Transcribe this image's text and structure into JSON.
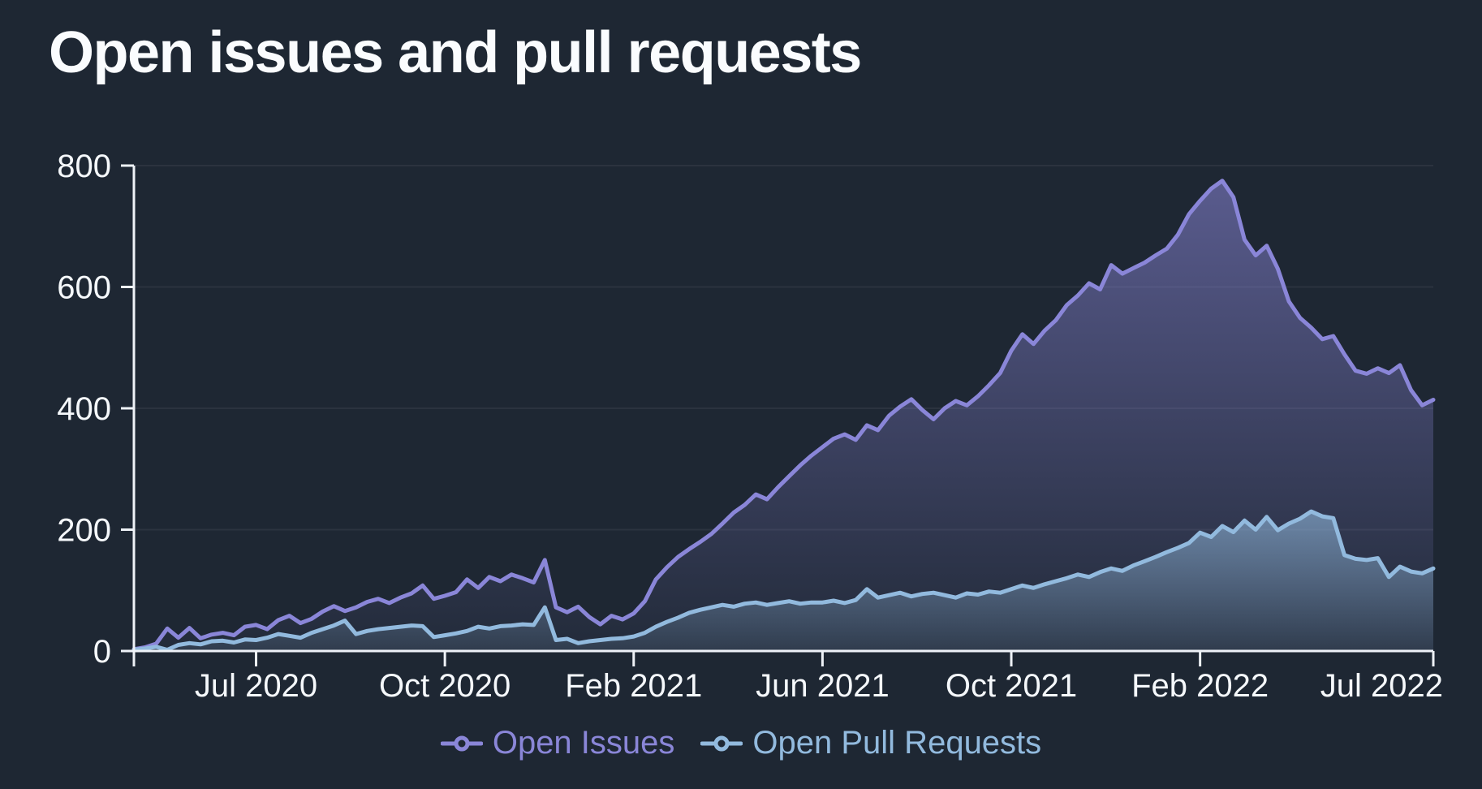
{
  "chart_data": {
    "type": "area",
    "title": "Open issues and pull requests",
    "xlabel": "",
    "ylabel": "",
    "ylim": [
      0,
      800
    ],
    "grid": true,
    "legend_position": "bottom",
    "background_color": "#1e2733",
    "axis_color": "#eef2f7",
    "y_ticks": [
      0,
      200,
      400,
      600,
      800
    ],
    "y_tick_labels": [
      "0",
      "200",
      "400",
      "600",
      "800"
    ],
    "x_tick_labels": [
      "Jul 2020",
      "Oct 2020",
      "Feb 2021",
      "Jun 2021",
      "Oct 2021",
      "Feb 2022",
      "Jul 2022"
    ],
    "x_label_indices": [
      11,
      28,
      45,
      62,
      79,
      96,
      117
    ],
    "x_tick_mark_indices": [
      0,
      11,
      28,
      45,
      62,
      79,
      96,
      117
    ],
    "series": [
      {
        "name": "Open Issues",
        "color": "#8a86d8",
        "marker": "line-circle",
        "values": [
          3,
          6,
          12,
          37,
          22,
          38,
          21,
          27,
          30,
          26,
          40,
          43,
          36,
          51,
          58,
          46,
          53,
          65,
          74,
          66,
          72,
          81,
          86,
          79,
          88,
          95,
          108,
          86,
          91,
          97,
          118,
          104,
          122,
          115,
          126,
          120,
          113,
          150,
          72,
          64,
          73,
          56,
          44,
          58,
          52,
          62,
          82,
          118,
          138,
          155,
          168,
          180,
          193,
          210,
          228,
          241,
          258,
          250,
          270,
          288,
          306,
          322,
          336,
          350,
          357,
          348,
          372,
          364,
          388,
          403,
          415,
          397,
          382,
          400,
          412,
          405,
          420,
          438,
          458,
          495,
          522,
          506,
          528,
          545,
          570,
          586,
          606,
          596,
          636,
          622,
          631,
          640,
          652,
          663,
          686,
          720,
          742,
          762,
          775,
          748,
          678,
          652,
          668,
          630,
          576,
          549,
          533,
          514,
          519,
          489,
          462,
          457,
          466,
          458,
          471,
          430,
          405,
          414
        ]
      },
      {
        "name": "Open Pull Requests",
        "color": "#92bade",
        "marker": "line-circle",
        "values": [
          2,
          4,
          7,
          2,
          10,
          13,
          11,
          16,
          17,
          14,
          19,
          18,
          22,
          28,
          25,
          22,
          30,
          36,
          42,
          50,
          28,
          33,
          36,
          38,
          40,
          42,
          41,
          23,
          26,
          29,
          33,
          40,
          37,
          41,
          42,
          44,
          43,
          72,
          18,
          20,
          13,
          16,
          18,
          20,
          21,
          24,
          30,
          40,
          48,
          55,
          63,
          68,
          72,
          76,
          73,
          78,
          80,
          76,
          79,
          82,
          78,
          80,
          80,
          83,
          79,
          84,
          102,
          88,
          92,
          96,
          90,
          94,
          96,
          92,
          88,
          95,
          93,
          98,
          96,
          102,
          108,
          104,
          110,
          115,
          120,
          126,
          122,
          130,
          136,
          132,
          141,
          148,
          155,
          163,
          170,
          178,
          195,
          188,
          206,
          196,
          215,
          200,
          221,
          199,
          210,
          218,
          230,
          222,
          219,
          158,
          152,
          150,
          153,
          122,
          139,
          131,
          128,
          136
        ]
      }
    ]
  }
}
